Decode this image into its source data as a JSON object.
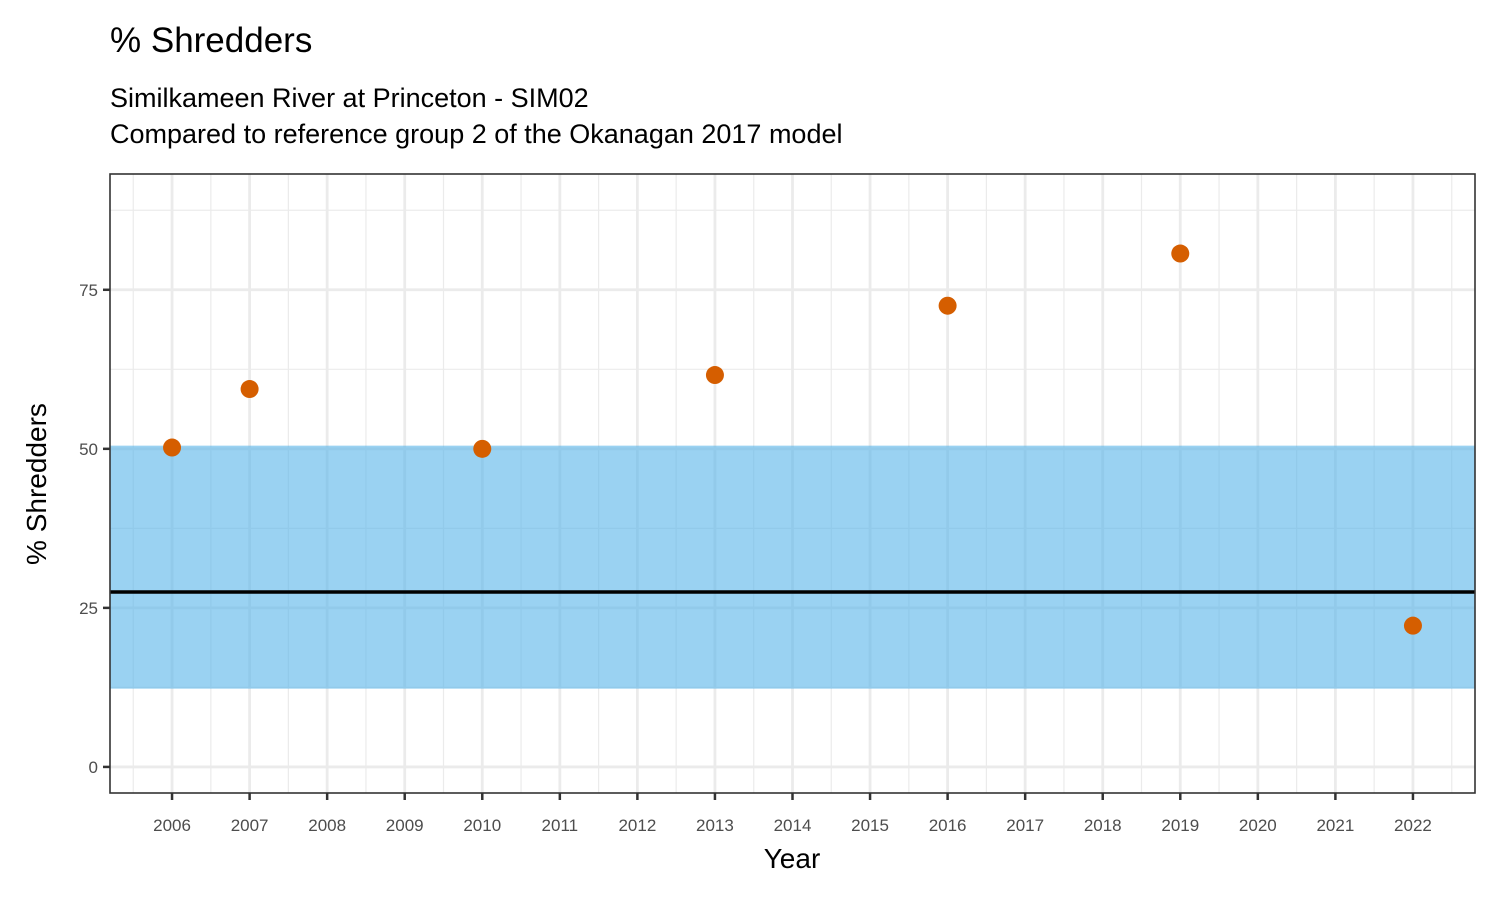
{
  "chart_data": {
    "type": "scatter",
    "title": "% Shredders",
    "subtitle_lines": [
      "Similkameen River at Princeton - SIM02",
      "Compared to reference group 2 of the Okanagan 2017 model"
    ],
    "xlabel": "Year",
    "ylabel": "% Shredders",
    "xlim": [
      2005.2,
      2022.8
    ],
    "ylim": [
      -4.1,
      93.2
    ],
    "x_ticks": [
      2006,
      2007,
      2008,
      2009,
      2010,
      2011,
      2012,
      2013,
      2014,
      2015,
      2016,
      2017,
      2018,
      2019,
      2020,
      2021,
      2022
    ],
    "y_ticks": [
      0,
      25,
      50,
      75
    ],
    "grid": true,
    "legend": "none",
    "reference_band": {
      "lower": 12.3,
      "upper": 50.5,
      "color": "#56B4E9"
    },
    "reference_line": {
      "value": 27.5,
      "color": "#000000"
    },
    "series": [
      {
        "name": "% Shredders",
        "color": "#D55E00",
        "points": [
          {
            "x": 2006,
            "y": 50.2
          },
          {
            "x": 2007,
            "y": 59.4
          },
          {
            "x": 2010,
            "y": 50.0
          },
          {
            "x": 2013,
            "y": 61.6
          },
          {
            "x": 2016,
            "y": 72.5
          },
          {
            "x": 2019,
            "y": 80.7
          },
          {
            "x": 2022,
            "y": 22.2
          }
        ]
      }
    ]
  }
}
